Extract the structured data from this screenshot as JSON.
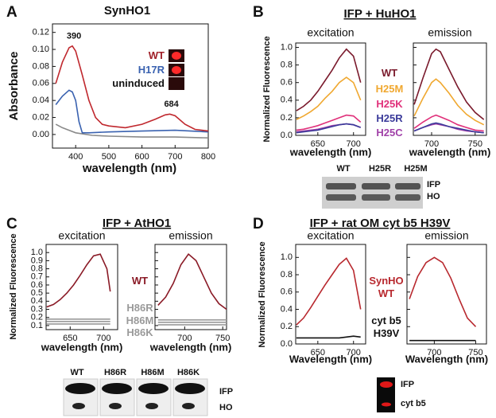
{
  "chart_data": [
    {
      "type": "line",
      "panel": "A",
      "title": "SynHO1",
      "title_underline": false,
      "xlabel": "wavelength (nm)",
      "ylabel": "Absorbance",
      "xlim": [
        330,
        800
      ],
      "xticks": [
        400,
        500,
        600,
        700,
        800
      ],
      "ylim": [
        -0.016,
        0.13
      ],
      "yticks": [
        {
          "value": 0,
          "label": "0.00"
        },
        0.02,
        0.04,
        0.06,
        0.08,
        {
          "value": 0.1,
          "label": "0.10"
        },
        0.12
      ],
      "series": [
        {
          "name": "WT",
          "color": "#c0282e",
          "legend_color": "#a01f28",
          "x": [
            340,
            360,
            380,
            390,
            400,
            420,
            440,
            460,
            480,
            500,
            550,
            600,
            640,
            670,
            684,
            700,
            730,
            760,
            800
          ],
          "values": [
            0.06,
            0.085,
            0.102,
            0.104,
            0.098,
            0.07,
            0.04,
            0.02,
            0.012,
            0.01,
            0.008,
            0.012,
            0.018,
            0.023,
            0.024,
            0.022,
            0.012,
            0.006,
            0.004
          ]
        },
        {
          "name": "H17R",
          "color": "#3a62b0",
          "legend_color": "#3a62b0",
          "x": [
            340,
            360,
            380,
            390,
            400,
            410,
            420,
            440,
            500,
            600,
            700,
            800
          ],
          "values": [
            0.035,
            0.045,
            0.052,
            0.05,
            0.04,
            0.015,
            0.002,
            0.002,
            0.003,
            0.004,
            0.005,
            0.003
          ]
        },
        {
          "name": "uninduced",
          "color": "#8a8a8a",
          "legend_color": "#111111",
          "x": [
            340,
            360,
            380,
            400,
            450,
            500,
            600,
            700,
            800
          ],
          "values": [
            0.012,
            0.008,
            0.005,
            0.002,
            -0.001,
            -0.002,
            -0.003,
            -0.003,
            -0.004
          ]
        }
      ],
      "annotations": [
        {
          "text": "390",
          "x": 390,
          "y": 0.104
        },
        {
          "text": "684",
          "x": 684,
          "y": 0.024
        }
      ]
    },
    {
      "type": "line",
      "panel": "B",
      "title": "IFP + HuHO1",
      "title_underline": true,
      "ylabel": "Normalized Fluorescence",
      "ylim": [
        0,
        1.05
      ],
      "yticks": [
        {
          "value": 0,
          "label": "0.0"
        },
        0.2,
        0.4,
        0.6,
        0.8,
        {
          "value": 1,
          "label": "1.0"
        }
      ],
      "series": [
        {
          "name": "WT",
          "color": "#7a1a2c"
        },
        {
          "name": "H25M",
          "color": "#f0a830"
        },
        {
          "name": "H25K",
          "color": "#e0307a"
        },
        {
          "name": "H25R",
          "color": "#3a3a9a"
        },
        {
          "name": "H25C",
          "color": "#a040a8"
        }
      ],
      "subplots": [
        {
          "subtitle": "excitation",
          "xlabel": "wavelength (nm)",
          "xlim": [
            619,
            717
          ],
          "xticks": [
            650,
            700
          ],
          "series": [
            {
              "x": [
                620,
                630,
                640,
                650,
                660,
                670,
                680,
                690,
                700,
                710
              ],
              "values": [
                0.28,
                0.33,
                0.4,
                0.5,
                0.62,
                0.74,
                0.88,
                0.98,
                0.9,
                0.6
              ]
            },
            {
              "x": [
                620,
                630,
                640,
                650,
                660,
                670,
                680,
                690,
                700,
                710
              ],
              "values": [
                0.18,
                0.22,
                0.27,
                0.33,
                0.42,
                0.5,
                0.6,
                0.66,
                0.6,
                0.4
              ]
            },
            {
              "x": [
                620,
                630,
                640,
                650,
                660,
                670,
                680,
                690,
                700,
                710
              ],
              "values": [
                0.06,
                0.07,
                0.09,
                0.11,
                0.14,
                0.17,
                0.2,
                0.23,
                0.22,
                0.15
              ]
            },
            {
              "x": [
                620,
                630,
                640,
                650,
                660,
                670,
                680,
                690,
                700,
                710
              ],
              "values": [
                0.03,
                0.04,
                0.05,
                0.06,
                0.08,
                0.1,
                0.12,
                0.13,
                0.12,
                0.09
              ]
            },
            {
              "x": [
                620,
                630,
                640,
                650,
                660,
                670,
                680,
                690,
                700,
                710
              ],
              "values": [
                0.04,
                0.05,
                0.06,
                0.07,
                0.09,
                0.11,
                0.12,
                0.13,
                0.12,
                0.09
              ]
            }
          ]
        },
        {
          "subtitle": "emission",
          "xlabel": "wavelength (nm)",
          "xlim": [
            679,
            763
          ],
          "xticks": [
            700,
            750
          ],
          "series": [
            {
              "x": [
                680,
                690,
                700,
                705,
                710,
                720,
                730,
                740,
                750,
                760
              ],
              "values": [
                0.35,
                0.65,
                0.93,
                0.98,
                0.95,
                0.75,
                0.55,
                0.38,
                0.26,
                0.18
              ]
            },
            {
              "x": [
                680,
                690,
                700,
                705,
                710,
                720,
                730,
                740,
                750,
                760
              ],
              "values": [
                0.22,
                0.42,
                0.6,
                0.64,
                0.6,
                0.48,
                0.34,
                0.24,
                0.17,
                0.12
              ]
            },
            {
              "x": [
                680,
                690,
                700,
                705,
                710,
                720,
                730,
                740,
                750,
                760
              ],
              "values": [
                0.08,
                0.15,
                0.21,
                0.23,
                0.21,
                0.17,
                0.12,
                0.09,
                0.06,
                0.05
              ]
            },
            {
              "x": [
                680,
                690,
                700,
                705,
                710,
                720,
                730,
                740,
                750,
                760
              ],
              "values": [
                0.05,
                0.09,
                0.13,
                0.14,
                0.13,
                0.1,
                0.08,
                0.06,
                0.04,
                0.03
              ]
            },
            {
              "x": [
                680,
                690,
                700,
                705,
                710,
                720,
                730,
                740,
                750,
                760
              ],
              "values": [
                0.05,
                0.09,
                0.12,
                0.13,
                0.12,
                0.1,
                0.07,
                0.05,
                0.04,
                0.03
              ]
            }
          ]
        }
      ],
      "gel": {
        "lanes": [
          "WT",
          "H25R",
          "H25M"
        ],
        "bands": [
          "IFP",
          "HO"
        ]
      }
    },
    {
      "type": "line",
      "panel": "C",
      "title": "IFP + AtHO1",
      "title_underline": true,
      "ylabel": "Normalized Fluorescence",
      "ylim": [
        0.05,
        1.1
      ],
      "yticks": [
        0.1,
        0.2,
        0.3,
        0.4,
        0.5,
        0.6,
        0.7,
        0.8,
        0.9,
        {
          "value": 1,
          "label": "1.0"
        }
      ],
      "series": [
        {
          "name": "WT",
          "color": "#8a1a26"
        },
        {
          "name": "H86R",
          "color": "#9a9a9a"
        },
        {
          "name": "H86M",
          "color": "#9a9a9a"
        },
        {
          "name": "H86K",
          "color": "#9a9a9a"
        }
      ],
      "subplots": [
        {
          "subtitle": "excitation",
          "xlabel": "wavelength (nm)",
          "xlim": [
            614,
            721
          ],
          "xticks": [
            650,
            700
          ],
          "series": [
            {
              "x": [
                615,
                625,
                635,
                645,
                655,
                665,
                675,
                685,
                695,
                705,
                710
              ],
              "values": [
                0.33,
                0.36,
                0.42,
                0.5,
                0.6,
                0.72,
                0.85,
                0.96,
                0.98,
                0.8,
                0.52
              ]
            },
            {
              "x": [
                615,
                625,
                635,
                645,
                655,
                665,
                675,
                685,
                695,
                705,
                710
              ],
              "values": [
                0.18,
                0.18,
                0.18,
                0.18,
                0.18,
                0.18,
                0.18,
                0.18,
                0.18,
                0.18,
                0.18
              ]
            },
            {
              "x": [
                615,
                625,
                635,
                645,
                655,
                665,
                675,
                685,
                695,
                705,
                710
              ],
              "values": [
                0.15,
                0.15,
                0.15,
                0.15,
                0.15,
                0.15,
                0.15,
                0.15,
                0.15,
                0.15,
                0.15
              ]
            },
            {
              "x": [
                615,
                625,
                635,
                645,
                655,
                665,
                675,
                685,
                695,
                705,
                710
              ],
              "values": [
                0.12,
                0.12,
                0.12,
                0.12,
                0.12,
                0.12,
                0.12,
                0.12,
                0.12,
                0.12,
                0.12
              ]
            }
          ]
        },
        {
          "subtitle": "emission",
          "xlabel": "wavelength (nm)",
          "xlim": [
            661,
            755
          ],
          "xticks": [
            700,
            750
          ],
          "series": [
            {
              "x": [
                665,
                675,
                685,
                695,
                705,
                715,
                725,
                735,
                745,
                755
              ],
              "values": [
                0.35,
                0.45,
                0.62,
                0.85,
                0.98,
                0.9,
                0.7,
                0.5,
                0.37,
                0.3
              ]
            },
            {
              "x": [
                665,
                675,
                685,
                695,
                705,
                715,
                725,
                735,
                745,
                755
              ],
              "values": [
                0.17,
                0.17,
                0.17,
                0.17,
                0.17,
                0.17,
                0.17,
                0.17,
                0.17,
                0.17
              ]
            },
            {
              "x": [
                665,
                675,
                685,
                695,
                705,
                715,
                725,
                735,
                745,
                755
              ],
              "values": [
                0.14,
                0.14,
                0.14,
                0.14,
                0.14,
                0.14,
                0.14,
                0.14,
                0.14,
                0.14
              ]
            },
            {
              "x": [
                665,
                675,
                685,
                695,
                705,
                715,
                725,
                735,
                745,
                755
              ],
              "values": [
                0.11,
                0.11,
                0.11,
                0.11,
                0.11,
                0.11,
                0.11,
                0.11,
                0.11,
                0.11
              ]
            }
          ]
        }
      ],
      "gel": {
        "lanes": [
          "WT",
          "H86R",
          "H86M",
          "H86K"
        ],
        "bands": [
          "IFP",
          "HO"
        ]
      }
    },
    {
      "type": "line",
      "panel": "D",
      "title": "IFP + rat OM cyt b5 H39V",
      "title_underline": true,
      "ylabel": "Normalized Fluorescence",
      "ylim": [
        0,
        1.15
      ],
      "yticks": [
        {
          "value": 0,
          "label": "0.0"
        },
        0.2,
        0.4,
        0.6,
        0.8,
        {
          "value": 1,
          "label": "1.0"
        }
      ],
      "series": [
        {
          "name": "SynHO\nWT",
          "color": "#b8282e"
        },
        {
          "name": "cyt b5\nH39V",
          "color": "#111111"
        }
      ],
      "subplots": [
        {
          "subtitle": "excitation",
          "xlabel": "Wavelength (nm)",
          "xlim": [
            619,
            717
          ],
          "xticks": [
            650,
            700
          ],
          "series": [
            {
              "x": [
                620,
                630,
                640,
                650,
                660,
                670,
                680,
                690,
                700,
                710
              ],
              "values": [
                0.22,
                0.3,
                0.42,
                0.55,
                0.68,
                0.8,
                0.92,
                0.99,
                0.85,
                0.4
              ]
            },
            {
              "x": [
                620,
                630,
                640,
                650,
                660,
                670,
                680,
                690,
                700,
                710
              ],
              "values": [
                0.07,
                0.07,
                0.07,
                0.07,
                0.07,
                0.07,
                0.07,
                0.08,
                0.09,
                0.08
              ]
            }
          ]
        },
        {
          "subtitle": "emission",
          "xlabel": "Wavelength (nm)",
          "xlim": [
            667,
            763
          ],
          "xticks": [
            700,
            750
          ],
          "series": [
            {
              "x": [
                670,
                680,
                690,
                700,
                710,
                720,
                730,
                740,
                750
              ],
              "values": [
                0.52,
                0.78,
                0.94,
                1,
                0.94,
                0.76,
                0.52,
                0.3,
                0.2
              ]
            },
            {
              "x": [
                670,
                680,
                690,
                700,
                710,
                720,
                730,
                740,
                750
              ],
              "values": [
                0.04,
                0.04,
                0.04,
                0.04,
                0.04,
                0.04,
                0.04,
                0.04,
                0.04
              ]
            }
          ]
        }
      ],
      "gel": {
        "lanes": [],
        "bands": [
          "IFP",
          "cyt b5"
        ]
      }
    }
  ]
}
